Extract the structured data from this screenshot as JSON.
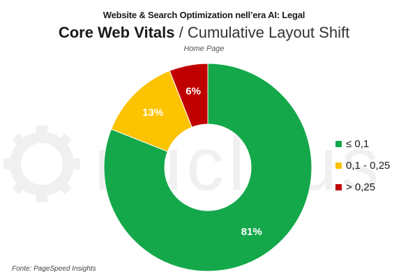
{
  "header": {
    "supertitle": "Website & Search Optimization nell’era AI: Legal",
    "title_bold": "Core Web Vitals",
    "title_rest": " / Cumulative Layout Shift",
    "subtitle": "Home Page"
  },
  "watermark": {
    "text": "nucleus",
    "icon": "gear-icon",
    "color": "#eeeeee"
  },
  "chart_data": {
    "type": "pie",
    "donut": true,
    "title": "Core Web Vitals / Cumulative Layout Shift",
    "subtitle": "Home Page",
    "slices": [
      {
        "label": "≤ 0,1",
        "value": 81,
        "display": "81%",
        "color": "#14a84a"
      },
      {
        "label": "0,1 - 0,25",
        "value": 13,
        "display": "13%",
        "color": "#fcc300"
      },
      {
        "label": "> 0,25",
        "value": 6,
        "display": "6%",
        "color": "#c00000"
      }
    ],
    "legend_position": "right"
  },
  "footer": {
    "source": "Fonte: PageSpeed Insights"
  }
}
